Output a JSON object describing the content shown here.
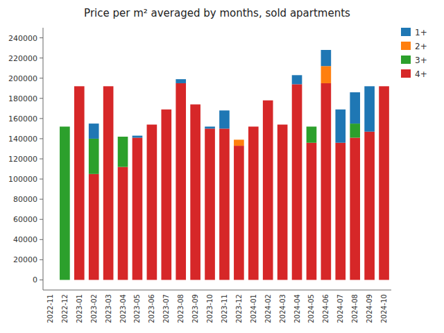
{
  "chart_data": {
    "type": "bar",
    "stacked": true,
    "title": "Price per m² averaged by months, sold apartments",
    "categories": [
      "2022-11",
      "2022-12",
      "2023-01",
      "2023-02",
      "2023-03",
      "2023-04",
      "2023-05",
      "2023-06",
      "2023-07",
      "2023-08",
      "2023-09",
      "2023-10",
      "2023-11",
      "2023-12",
      "2024-01",
      "2024-02",
      "2024-03",
      "2024-04",
      "2024-05",
      "2024-06",
      "2024-07",
      "2024-08",
      "2024-09",
      "2024-10"
    ],
    "series": [
      {
        "name": "4+",
        "color": "#d62728",
        "values": [
          0,
          0,
          192000,
          105000,
          192000,
          112000,
          141000,
          154000,
          169000,
          195000,
          174000,
          150000,
          150000,
          133000,
          152000,
          178000,
          154000,
          194000,
          136000,
          195000,
          136000,
          141000,
          147000,
          192000
        ]
      },
      {
        "name": "3+",
        "color": "#2ca02c",
        "values": [
          0,
          152000,
          0,
          35000,
          0,
          30000,
          0,
          0,
          0,
          0,
          0,
          0,
          0,
          0,
          0,
          0,
          0,
          0,
          16000,
          0,
          0,
          14000,
          0,
          0
        ]
      },
      {
        "name": "2+",
        "color": "#ff7f0e",
        "values": [
          0,
          0,
          0,
          0,
          0,
          0,
          0,
          0,
          0,
          0,
          0,
          0,
          0,
          6000,
          0,
          0,
          0,
          0,
          0,
          17000,
          0,
          0,
          0,
          0
        ]
      },
      {
        "name": "1+",
        "color": "#1f77b4",
        "values": [
          0,
          0,
          0,
          15000,
          0,
          0,
          2000,
          0,
          0,
          4000,
          0,
          2000,
          18000,
          0,
          0,
          0,
          0,
          9000,
          0,
          16000,
          33000,
          31000,
          45000,
          0
        ]
      }
    ],
    "ylim": [
      -10000,
      250000
    ],
    "yticks": [
      0,
      20000,
      40000,
      60000,
      80000,
      100000,
      120000,
      140000,
      160000,
      180000,
      200000,
      220000,
      240000
    ],
    "grid": false,
    "legend": "upper right"
  }
}
